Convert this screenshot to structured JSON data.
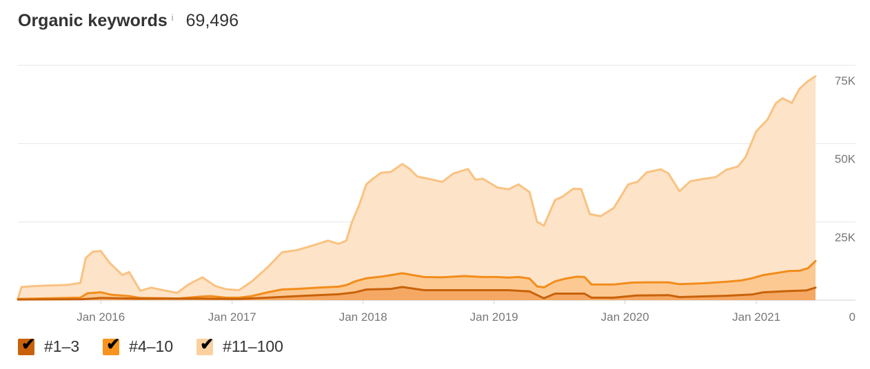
{
  "header": {
    "title": "Organic keywords",
    "info_icon": "i",
    "total": "69,496"
  },
  "legend": [
    {
      "label": "#1–3",
      "color": "#c8620a",
      "checked": true
    },
    {
      "label": "#4–10",
      "color": "#f7931e",
      "checked": true
    },
    {
      "label": "#11–100",
      "color": "#fbd09f",
      "checked": true
    }
  ],
  "chart_data": {
    "type": "area",
    "stacked": false,
    "grid": true,
    "x_ticks": [
      {
        "label": "Jan 2016",
        "date": "2016-01-01"
      },
      {
        "label": "Jan 2017",
        "date": "2017-01-01"
      },
      {
        "label": "Jan 2018",
        "date": "2018-01-01"
      },
      {
        "label": "Jan 2019",
        "date": "2019-01-01"
      },
      {
        "label": "Jan 2020",
        "date": "2020-01-01"
      },
      {
        "label": "Jan 2021",
        "date": "2021-01-01"
      }
    ],
    "y_ticks": [
      {
        "label": "0",
        "value": 0
      },
      {
        "label": "25K",
        "value": 25000
      },
      {
        "label": "50K",
        "value": 50000
      },
      {
        "label": "75K",
        "value": 75000
      }
    ],
    "xlim": [
      "2015-05-15",
      "2021-06-15"
    ],
    "ylim": [
      0,
      75000
    ],
    "series": [
      {
        "name": "#11–100",
        "color": "#f9c281",
        "fill": "#fde3c8",
        "points": [
          [
            "2015-05-15",
            500
          ],
          [
            "2015-05-25",
            4200
          ],
          [
            "2015-07-01",
            4500
          ],
          [
            "2015-10-01",
            4900
          ],
          [
            "2015-11-05",
            5500
          ],
          [
            "2015-11-20",
            13500
          ],
          [
            "2015-12-10",
            15500
          ],
          [
            "2016-01-01",
            15700
          ],
          [
            "2016-01-25",
            12000
          ],
          [
            "2016-03-01",
            8000
          ],
          [
            "2016-03-20",
            9000
          ],
          [
            "2016-04-20",
            3000
          ],
          [
            "2016-05-20",
            4000
          ],
          [
            "2016-07-01",
            3000
          ],
          [
            "2016-08-01",
            2300
          ],
          [
            "2016-09-01",
            5000
          ],
          [
            "2016-10-10",
            7300
          ],
          [
            "2016-11-15",
            4500
          ],
          [
            "2016-12-15",
            3500
          ],
          [
            "2017-01-20",
            3200
          ],
          [
            "2017-02-25",
            6000
          ],
          [
            "2017-04-10",
            10500
          ],
          [
            "2017-05-20",
            15300
          ],
          [
            "2017-07-01",
            16000
          ],
          [
            "2017-08-15",
            17500
          ],
          [
            "2017-09-25",
            19000
          ],
          [
            "2017-10-25",
            18000
          ],
          [
            "2017-11-15",
            19000
          ],
          [
            "2017-12-01",
            25000
          ],
          [
            "2017-12-20",
            30000
          ],
          [
            "2018-01-10",
            37000
          ],
          [
            "2018-01-25",
            38500
          ],
          [
            "2018-02-20",
            40700
          ],
          [
            "2018-03-20",
            41000
          ],
          [
            "2018-04-20",
            43500
          ],
          [
            "2018-05-10",
            42000
          ],
          [
            "2018-06-01",
            39500
          ],
          [
            "2018-07-01",
            38800
          ],
          [
            "2018-08-10",
            37800
          ],
          [
            "2018-09-10",
            40500
          ],
          [
            "2018-10-20",
            41900
          ],
          [
            "2018-11-10",
            38500
          ],
          [
            "2018-12-01",
            38800
          ],
          [
            "2019-01-10",
            36000
          ],
          [
            "2019-02-10",
            35400
          ],
          [
            "2019-03-10",
            37000
          ],
          [
            "2019-04-10",
            34500
          ],
          [
            "2019-05-01",
            25000
          ],
          [
            "2019-05-20",
            23800
          ],
          [
            "2019-06-20",
            32000
          ],
          [
            "2019-07-10",
            33000
          ],
          [
            "2019-08-10",
            35600
          ],
          [
            "2019-09-01",
            35500
          ],
          [
            "2019-09-25",
            27500
          ],
          [
            "2019-10-25",
            26800
          ],
          [
            "2019-12-01",
            29500
          ],
          [
            "2020-01-10",
            37000
          ],
          [
            "2020-02-05",
            37800
          ],
          [
            "2020-03-01",
            40800
          ],
          [
            "2020-04-10",
            41800
          ],
          [
            "2020-05-01",
            40500
          ],
          [
            "2020-06-01",
            34800
          ],
          [
            "2020-07-01",
            38000
          ],
          [
            "2020-08-10",
            38800
          ],
          [
            "2020-09-10",
            39300
          ],
          [
            "2020-10-10",
            41700
          ],
          [
            "2020-11-10",
            42700
          ],
          [
            "2020-12-01",
            45500
          ],
          [
            "2021-01-01",
            54000
          ],
          [
            "2021-02-01",
            57700
          ],
          [
            "2021-02-25",
            63000
          ],
          [
            "2021-03-15",
            64500
          ],
          [
            "2021-04-10",
            63000
          ],
          [
            "2021-05-01",
            67500
          ],
          [
            "2021-05-25",
            70000
          ],
          [
            "2021-06-10",
            71200
          ],
          [
            "2021-06-15",
            71500
          ]
        ]
      },
      {
        "name": "#4–10",
        "color": "#f28c1a",
        "fill": "#fcc48a",
        "points": [
          [
            "2015-05-15",
            400
          ],
          [
            "2015-10-01",
            700
          ],
          [
            "2015-11-05",
            800
          ],
          [
            "2015-11-25",
            2200
          ],
          [
            "2016-01-01",
            2500
          ],
          [
            "2016-02-01",
            1700
          ],
          [
            "2016-03-20",
            1300
          ],
          [
            "2016-04-20",
            700
          ],
          [
            "2016-07-01",
            600
          ],
          [
            "2016-08-01",
            500
          ],
          [
            "2016-10-01",
            1100
          ],
          [
            "2016-11-01",
            1300
          ],
          [
            "2016-12-15",
            800
          ],
          [
            "2017-01-20",
            800
          ],
          [
            "2017-02-25",
            1300
          ],
          [
            "2017-04-10",
            2500
          ],
          [
            "2017-05-20",
            3400
          ],
          [
            "2017-07-01",
            3600
          ],
          [
            "2017-09-01",
            4000
          ],
          [
            "2017-10-25",
            4300
          ],
          [
            "2017-11-15",
            4800
          ],
          [
            "2017-12-10",
            6000
          ],
          [
            "2018-01-10",
            7000
          ],
          [
            "2018-02-20",
            7500
          ],
          [
            "2018-03-20",
            8000
          ],
          [
            "2018-04-20",
            8600
          ],
          [
            "2018-05-20",
            8000
          ],
          [
            "2018-06-20",
            7400
          ],
          [
            "2018-08-10",
            7300
          ],
          [
            "2018-10-10",
            7700
          ],
          [
            "2018-12-01",
            7400
          ],
          [
            "2019-01-10",
            7400
          ],
          [
            "2019-02-10",
            7200
          ],
          [
            "2019-03-10",
            7400
          ],
          [
            "2019-04-10",
            6900
          ],
          [
            "2019-05-01",
            4400
          ],
          [
            "2019-05-20",
            4100
          ],
          [
            "2019-06-20",
            6000
          ],
          [
            "2019-07-20",
            6900
          ],
          [
            "2019-08-20",
            7500
          ],
          [
            "2019-09-10",
            7400
          ],
          [
            "2019-09-30",
            5000
          ],
          [
            "2019-12-01",
            5000
          ],
          [
            "2020-01-20",
            5600
          ],
          [
            "2020-03-01",
            5700
          ],
          [
            "2020-05-01",
            5700
          ],
          [
            "2020-06-01",
            5100
          ],
          [
            "2020-08-10",
            5400
          ],
          [
            "2020-10-10",
            5900
          ],
          [
            "2020-11-20",
            6300
          ],
          [
            "2020-12-20",
            7000
          ],
          [
            "2021-01-20",
            8000
          ],
          [
            "2021-03-01",
            8700
          ],
          [
            "2021-04-01",
            9300
          ],
          [
            "2021-05-01",
            9400
          ],
          [
            "2021-05-25",
            10200
          ],
          [
            "2021-06-15",
            12500
          ]
        ]
      },
      {
        "name": "#1–3",
        "color": "#c8620a",
        "fill": "#f2a25c",
        "points": [
          [
            "2015-05-15",
            200
          ],
          [
            "2015-11-10",
            300
          ],
          [
            "2016-01-01",
            700
          ],
          [
            "2016-04-10",
            500
          ],
          [
            "2016-10-01",
            500
          ],
          [
            "2017-01-20",
            400
          ],
          [
            "2017-04-10",
            800
          ],
          [
            "2017-07-01",
            1300
          ],
          [
            "2017-10-25",
            1900
          ],
          [
            "2017-12-10",
            2500
          ],
          [
            "2018-01-10",
            3400
          ],
          [
            "2018-03-20",
            3600
          ],
          [
            "2018-04-20",
            4200
          ],
          [
            "2018-06-20",
            3200
          ],
          [
            "2018-10-10",
            3200
          ],
          [
            "2019-02-10",
            3200
          ],
          [
            "2019-04-10",
            2800
          ],
          [
            "2019-05-20",
            600
          ],
          [
            "2019-06-20",
            2100
          ],
          [
            "2019-09-10",
            2100
          ],
          [
            "2019-09-30",
            800
          ],
          [
            "2019-12-01",
            800
          ],
          [
            "2020-02-01",
            1500
          ],
          [
            "2020-05-01",
            1600
          ],
          [
            "2020-06-01",
            1000
          ],
          [
            "2020-10-10",
            1400
          ],
          [
            "2020-12-20",
            1800
          ],
          [
            "2021-01-20",
            2500
          ],
          [
            "2021-04-01",
            2900
          ],
          [
            "2021-05-20",
            3100
          ],
          [
            "2021-06-15",
            4000
          ]
        ]
      }
    ]
  }
}
